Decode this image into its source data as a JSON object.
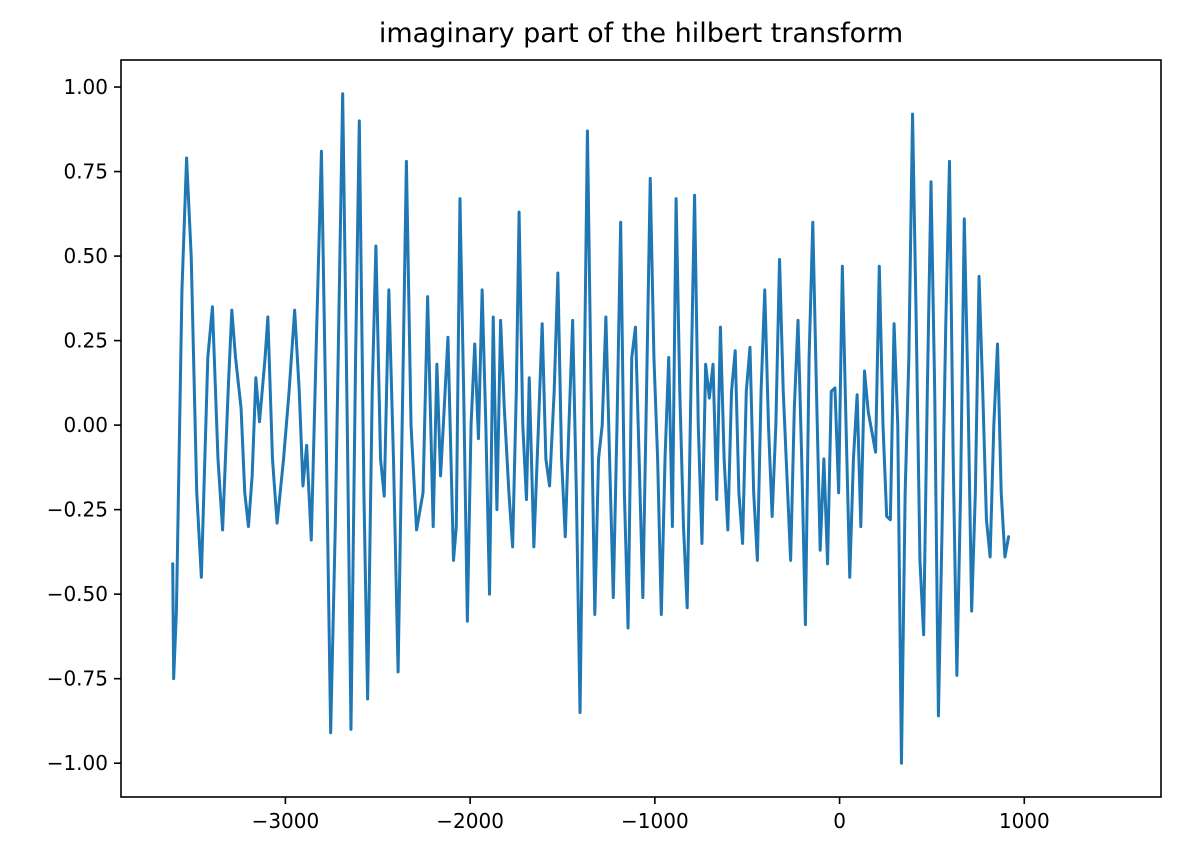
{
  "chart_data": {
    "type": "line",
    "title": "imaginary part of the hilbert transform",
    "xlabel": "",
    "ylabel": "",
    "xlim": [
      -3890,
      1740
    ],
    "ylim": [
      -1.1,
      1.08
    ],
    "grid": false,
    "xticks": [
      {
        "value": -3000,
        "label": "−3000"
      },
      {
        "value": -2000,
        "label": "−2000"
      },
      {
        "value": -1000,
        "label": "−1000"
      },
      {
        "value": 0,
        "label": "0"
      },
      {
        "value": 1000,
        "label": "1000"
      }
    ],
    "yticks": [
      {
        "value": 1.0,
        "label": "1.00"
      },
      {
        "value": 0.75,
        "label": "0.75"
      },
      {
        "value": 0.5,
        "label": "0.50"
      },
      {
        "value": 0.25,
        "label": "0.25"
      },
      {
        "value": 0.0,
        "label": "0.00"
      },
      {
        "value": -0.25,
        "label": "−0.25"
      },
      {
        "value": -0.5,
        "label": "−0.50"
      },
      {
        "value": -0.75,
        "label": "−0.75"
      },
      {
        "value": -1.0,
        "label": "−1.00"
      }
    ],
    "series": [
      {
        "color": "#1f77b4",
        "points": [
          [
            -3610,
            -0.41
          ],
          [
            -3605,
            -0.75
          ],
          [
            -3590,
            -0.55
          ],
          [
            -3560,
            0.4
          ],
          [
            -3535,
            0.79
          ],
          [
            -3510,
            0.5
          ],
          [
            -3480,
            -0.2
          ],
          [
            -3455,
            -0.45
          ],
          [
            -3420,
            0.2
          ],
          [
            -3395,
            0.35
          ],
          [
            -3365,
            -0.1
          ],
          [
            -3340,
            -0.31
          ],
          [
            -3310,
            0.1
          ],
          [
            -3290,
            0.34
          ],
          [
            -3270,
            0.2
          ],
          [
            -3240,
            0.05
          ],
          [
            -3220,
            -0.2
          ],
          [
            -3200,
            -0.3
          ],
          [
            -3180,
            -0.15
          ],
          [
            -3160,
            0.14
          ],
          [
            -3140,
            0.01
          ],
          [
            -3110,
            0.2
          ],
          [
            -3095,
            0.32
          ],
          [
            -3070,
            -0.1
          ],
          [
            -3045,
            -0.29
          ],
          [
            -3010,
            -0.1
          ],
          [
            -2980,
            0.1
          ],
          [
            -2950,
            0.34
          ],
          [
            -2925,
            0.1
          ],
          [
            -2905,
            -0.18
          ],
          [
            -2885,
            -0.06
          ],
          [
            -2860,
            -0.34
          ],
          [
            -2830,
            0.3
          ],
          [
            -2805,
            0.81
          ],
          [
            -2780,
            0.0
          ],
          [
            -2755,
            -0.91
          ],
          [
            -2730,
            -0.3
          ],
          [
            -2705,
            0.5
          ],
          [
            -2690,
            0.98
          ],
          [
            -2665,
            0.0
          ],
          [
            -2645,
            -0.9
          ],
          [
            -2620,
            0.2
          ],
          [
            -2600,
            0.9
          ],
          [
            -2575,
            -0.2
          ],
          [
            -2555,
            -0.81
          ],
          [
            -2530,
            0.1
          ],
          [
            -2510,
            0.53
          ],
          [
            -2485,
            -0.1
          ],
          [
            -2465,
            -0.21
          ],
          [
            -2440,
            0.4
          ],
          [
            -2415,
            -0.1
          ],
          [
            -2390,
            -0.73
          ],
          [
            -2365,
            0.1
          ],
          [
            -2345,
            0.78
          ],
          [
            -2320,
            0.0
          ],
          [
            -2290,
            -0.31
          ],
          [
            -2255,
            -0.2
          ],
          [
            -2230,
            0.38
          ],
          [
            -2200,
            -0.3
          ],
          [
            -2180,
            0.18
          ],
          [
            -2160,
            -0.15
          ],
          [
            -2145,
            0.0
          ],
          [
            -2120,
            0.26
          ],
          [
            -2090,
            -0.4
          ],
          [
            -2075,
            -0.3
          ],
          [
            -2055,
            0.67
          ],
          [
            -2035,
            0.1
          ],
          [
            -2015,
            -0.58
          ],
          [
            -1995,
            0.0
          ],
          [
            -1975,
            0.24
          ],
          [
            -1955,
            -0.04
          ],
          [
            -1935,
            0.4
          ],
          [
            -1915,
            0.0
          ],
          [
            -1895,
            -0.5
          ],
          [
            -1875,
            0.32
          ],
          [
            -1855,
            -0.25
          ],
          [
            -1835,
            0.31
          ],
          [
            -1815,
            0.05
          ],
          [
            -1790,
            -0.2
          ],
          [
            -1770,
            -0.36
          ],
          [
            -1750,
            0.1
          ],
          [
            -1735,
            0.63
          ],
          [
            -1715,
            0.0
          ],
          [
            -1695,
            -0.22
          ],
          [
            -1680,
            0.14
          ],
          [
            -1655,
            -0.36
          ],
          [
            -1630,
            0.0
          ],
          [
            -1610,
            0.3
          ],
          [
            -1590,
            -0.1
          ],
          [
            -1570,
            -0.18
          ],
          [
            -1545,
            0.1
          ],
          [
            -1525,
            0.45
          ],
          [
            -1505,
            -0.1
          ],
          [
            -1485,
            -0.33
          ],
          [
            -1465,
            0.0
          ],
          [
            -1445,
            0.31
          ],
          [
            -1425,
            -0.2
          ],
          [
            -1405,
            -0.85
          ],
          [
            -1385,
            0.0
          ],
          [
            -1365,
            0.87
          ],
          [
            -1345,
            0.1
          ],
          [
            -1325,
            -0.56
          ],
          [
            -1305,
            -0.1
          ],
          [
            -1285,
            0.0
          ],
          [
            -1265,
            0.32
          ],
          [
            -1245,
            -0.1
          ],
          [
            -1225,
            -0.51
          ],
          [
            -1205,
            0.0
          ],
          [
            -1185,
            0.6
          ],
          [
            -1165,
            -0.2
          ],
          [
            -1145,
            -0.6
          ],
          [
            -1125,
            0.2
          ],
          [
            -1105,
            0.29
          ],
          [
            -1085,
            -0.1
          ],
          [
            -1065,
            -0.51
          ],
          [
            -1045,
            0.1
          ],
          [
            -1025,
            0.73
          ],
          [
            -1005,
            0.2
          ],
          [
            -985,
            -0.1
          ],
          [
            -965,
            -0.56
          ],
          [
            -945,
            -0.1
          ],
          [
            -925,
            0.2
          ],
          [
            -905,
            -0.3
          ],
          [
            -885,
            0.67
          ],
          [
            -865,
            0.1
          ],
          [
            -845,
            -0.3
          ],
          [
            -825,
            -0.54
          ],
          [
            -805,
            0.1
          ],
          [
            -785,
            0.68
          ],
          [
            -765,
            0.0
          ],
          [
            -745,
            -0.35
          ],
          [
            -725,
            0.18
          ],
          [
            -705,
            0.08
          ],
          [
            -685,
            0.18
          ],
          [
            -665,
            -0.22
          ],
          [
            -645,
            0.29
          ],
          [
            -625,
            -0.1
          ],
          [
            -605,
            -0.31
          ],
          [
            -585,
            0.1
          ],
          [
            -565,
            0.22
          ],
          [
            -545,
            -0.2
          ],
          [
            -525,
            -0.35
          ],
          [
            -505,
            0.1
          ],
          [
            -485,
            0.23
          ],
          [
            -465,
            -0.2
          ],
          [
            -445,
            -0.4
          ],
          [
            -425,
            0.1
          ],
          [
            -405,
            0.4
          ],
          [
            -385,
            0.0
          ],
          [
            -365,
            -0.27
          ],
          [
            -345,
            0.0
          ],
          [
            -325,
            0.49
          ],
          [
            -305,
            0.1
          ],
          [
            -285,
            -0.15
          ],
          [
            -265,
            -0.4
          ],
          [
            -245,
            0.05
          ],
          [
            -225,
            0.31
          ],
          [
            -205,
            -0.1
          ],
          [
            -185,
            -0.59
          ],
          [
            -165,
            0.2
          ],
          [
            -145,
            0.6
          ],
          [
            -125,
            0.1
          ],
          [
            -105,
            -0.37
          ],
          [
            -85,
            -0.1
          ],
          [
            -65,
            -0.41
          ],
          [
            -45,
            0.1
          ],
          [
            -25,
            0.11
          ],
          [
            -5,
            -0.2
          ],
          [
            15,
            0.47
          ],
          [
            35,
            0.0
          ],
          [
            55,
            -0.45
          ],
          [
            75,
            -0.1
          ],
          [
            95,
            0.09
          ],
          [
            115,
            -0.3
          ],
          [
            135,
            0.16
          ],
          [
            155,
            0.04
          ],
          [
            175,
            -0.02
          ],
          [
            195,
            -0.08
          ],
          [
            215,
            0.47
          ],
          [
            235,
            0.0
          ],
          [
            255,
            -0.27
          ],
          [
            275,
            -0.28
          ],
          [
            295,
            0.3
          ],
          [
            315,
            0.0
          ],
          [
            335,
            -1.0
          ],
          [
            355,
            -0.2
          ],
          [
            375,
            0.2
          ],
          [
            395,
            0.92
          ],
          [
            415,
            0.3
          ],
          [
            435,
            -0.4
          ],
          [
            455,
            -0.62
          ],
          [
            475,
            0.1
          ],
          [
            495,
            0.72
          ],
          [
            515,
            0.1
          ],
          [
            535,
            -0.86
          ],
          [
            555,
            -0.3
          ],
          [
            575,
            0.3
          ],
          [
            595,
            0.78
          ],
          [
            615,
            -0.1
          ],
          [
            635,
            -0.74
          ],
          [
            655,
            -0.2
          ],
          [
            675,
            0.61
          ],
          [
            695,
            0.1
          ],
          [
            715,
            -0.55
          ],
          [
            735,
            -0.2
          ],
          [
            755,
            0.44
          ],
          [
            775,
            0.1
          ],
          [
            795,
            -0.28
          ],
          [
            815,
            -0.39
          ],
          [
            835,
            0.0
          ],
          [
            855,
            0.24
          ],
          [
            875,
            -0.2
          ],
          [
            895,
            -0.39
          ],
          [
            915,
            -0.33
          ]
        ]
      }
    ]
  }
}
